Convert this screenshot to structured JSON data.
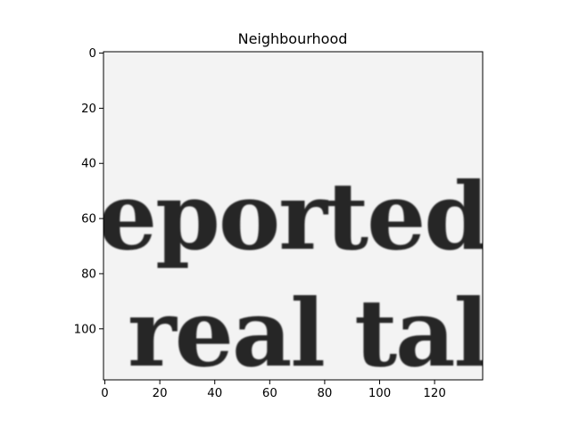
{
  "chart_data": {
    "type": "image",
    "title": "Neighbourhood",
    "xlabel": "",
    "ylabel": "",
    "xlim": [
      -0.5,
      137.5
    ],
    "ylim": [
      118.5,
      -0.5
    ],
    "xticks": [
      0,
      20,
      40,
      60,
      80,
      100,
      120
    ],
    "yticks": [
      0,
      20,
      40,
      60,
      80,
      100
    ],
    "image_text": {
      "line1": "eported",
      "line2": "real tall"
    },
    "colors": {
      "background": "#f3f3f3",
      "ink": "#262626",
      "axis": "#000000"
    }
  }
}
